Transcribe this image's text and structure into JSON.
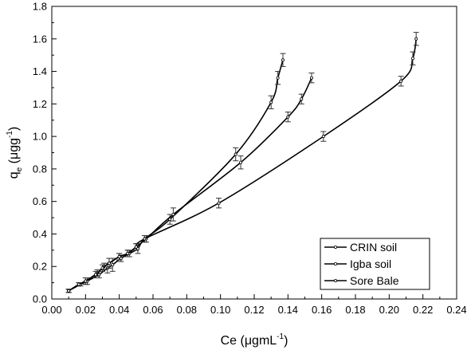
{
  "chart_data": {
    "type": "scatter",
    "xlabel": "Ce (μgmL",
    "xlabel_sup": "-1",
    "xlabel_suffix": ")",
    "ylabel_main": "q",
    "ylabel_sub": "e",
    "ylabel_rest": " (μgg",
    "ylabel_sup": "-1",
    "ylabel_suffix": ")",
    "xlim": [
      0.0,
      0.24
    ],
    "ylim": [
      0.0,
      1.8
    ],
    "x_ticks": [
      0.0,
      0.02,
      0.04,
      0.06,
      0.08,
      0.1,
      0.12,
      0.14,
      0.16,
      0.18,
      0.2,
      0.22,
      0.24
    ],
    "x_tick_labels": [
      "0.00",
      "0.02",
      "0.04",
      "0.06",
      "0.08",
      "0.10",
      "0.12",
      "0.14",
      "0.16",
      "0.18",
      "0.20",
      "0.22",
      "0.24"
    ],
    "y_ticks": [
      0.0,
      0.2,
      0.4,
      0.6,
      0.8,
      1.0,
      1.2,
      1.4,
      1.6,
      1.8
    ],
    "y_tick_labels": [
      "0.0",
      "0.2",
      "0.4",
      "0.6",
      "0.8",
      "1.0",
      "1.2",
      "1.4",
      "1.6",
      "1.8"
    ],
    "grid": false,
    "legend_position": "bottom-right",
    "series": [
      {
        "name": "CRIN soil",
        "color": "#000000",
        "x": [
          0.01,
          0.017,
          0.021,
          0.028,
          0.033,
          0.036,
          0.041,
          0.046,
          0.051,
          0.055,
          0.07,
          0.109,
          0.13,
          0.134,
          0.137
        ],
        "y": [
          0.05,
          0.09,
          0.11,
          0.15,
          0.19,
          0.21,
          0.25,
          0.28,
          0.31,
          0.37,
          0.49,
          0.89,
          1.21,
          1.36,
          1.47
        ],
        "err": [
          0.01,
          0.01,
          0.02,
          0.02,
          0.03,
          0.04,
          0.02,
          0.02,
          0.03,
          0.02,
          0.03,
          0.04,
          0.04,
          0.04,
          0.04
        ]
      },
      {
        "name": "Igba soil",
        "color": "#000000",
        "x": [
          0.01,
          0.016,
          0.02,
          0.027,
          0.031,
          0.034,
          0.04,
          0.045,
          0.05,
          0.056,
          0.072,
          0.112,
          0.14,
          0.148,
          0.154
        ],
        "y": [
          0.05,
          0.09,
          0.11,
          0.16,
          0.2,
          0.22,
          0.26,
          0.28,
          0.32,
          0.37,
          0.52,
          0.84,
          1.12,
          1.23,
          1.36
        ],
        "err": [
          0.01,
          0.01,
          0.02,
          0.02,
          0.02,
          0.03,
          0.02,
          0.02,
          0.02,
          0.02,
          0.04,
          0.04,
          0.03,
          0.03,
          0.03
        ]
      },
      {
        "name": "Sore Bale",
        "color": "#000000",
        "x": [
          0.01,
          0.016,
          0.02,
          0.026,
          0.03,
          0.034,
          0.04,
          0.045,
          0.05,
          0.055,
          0.099,
          0.161,
          0.207,
          0.214,
          0.216
        ],
        "y": [
          0.05,
          0.09,
          0.11,
          0.15,
          0.19,
          0.22,
          0.26,
          0.28,
          0.32,
          0.37,
          0.59,
          1.0,
          1.34,
          1.48,
          1.6
        ],
        "err": [
          0.01,
          0.01,
          0.02,
          0.02,
          0.02,
          0.03,
          0.02,
          0.02,
          0.02,
          0.02,
          0.03,
          0.03,
          0.03,
          0.04,
          0.04
        ]
      }
    ]
  }
}
